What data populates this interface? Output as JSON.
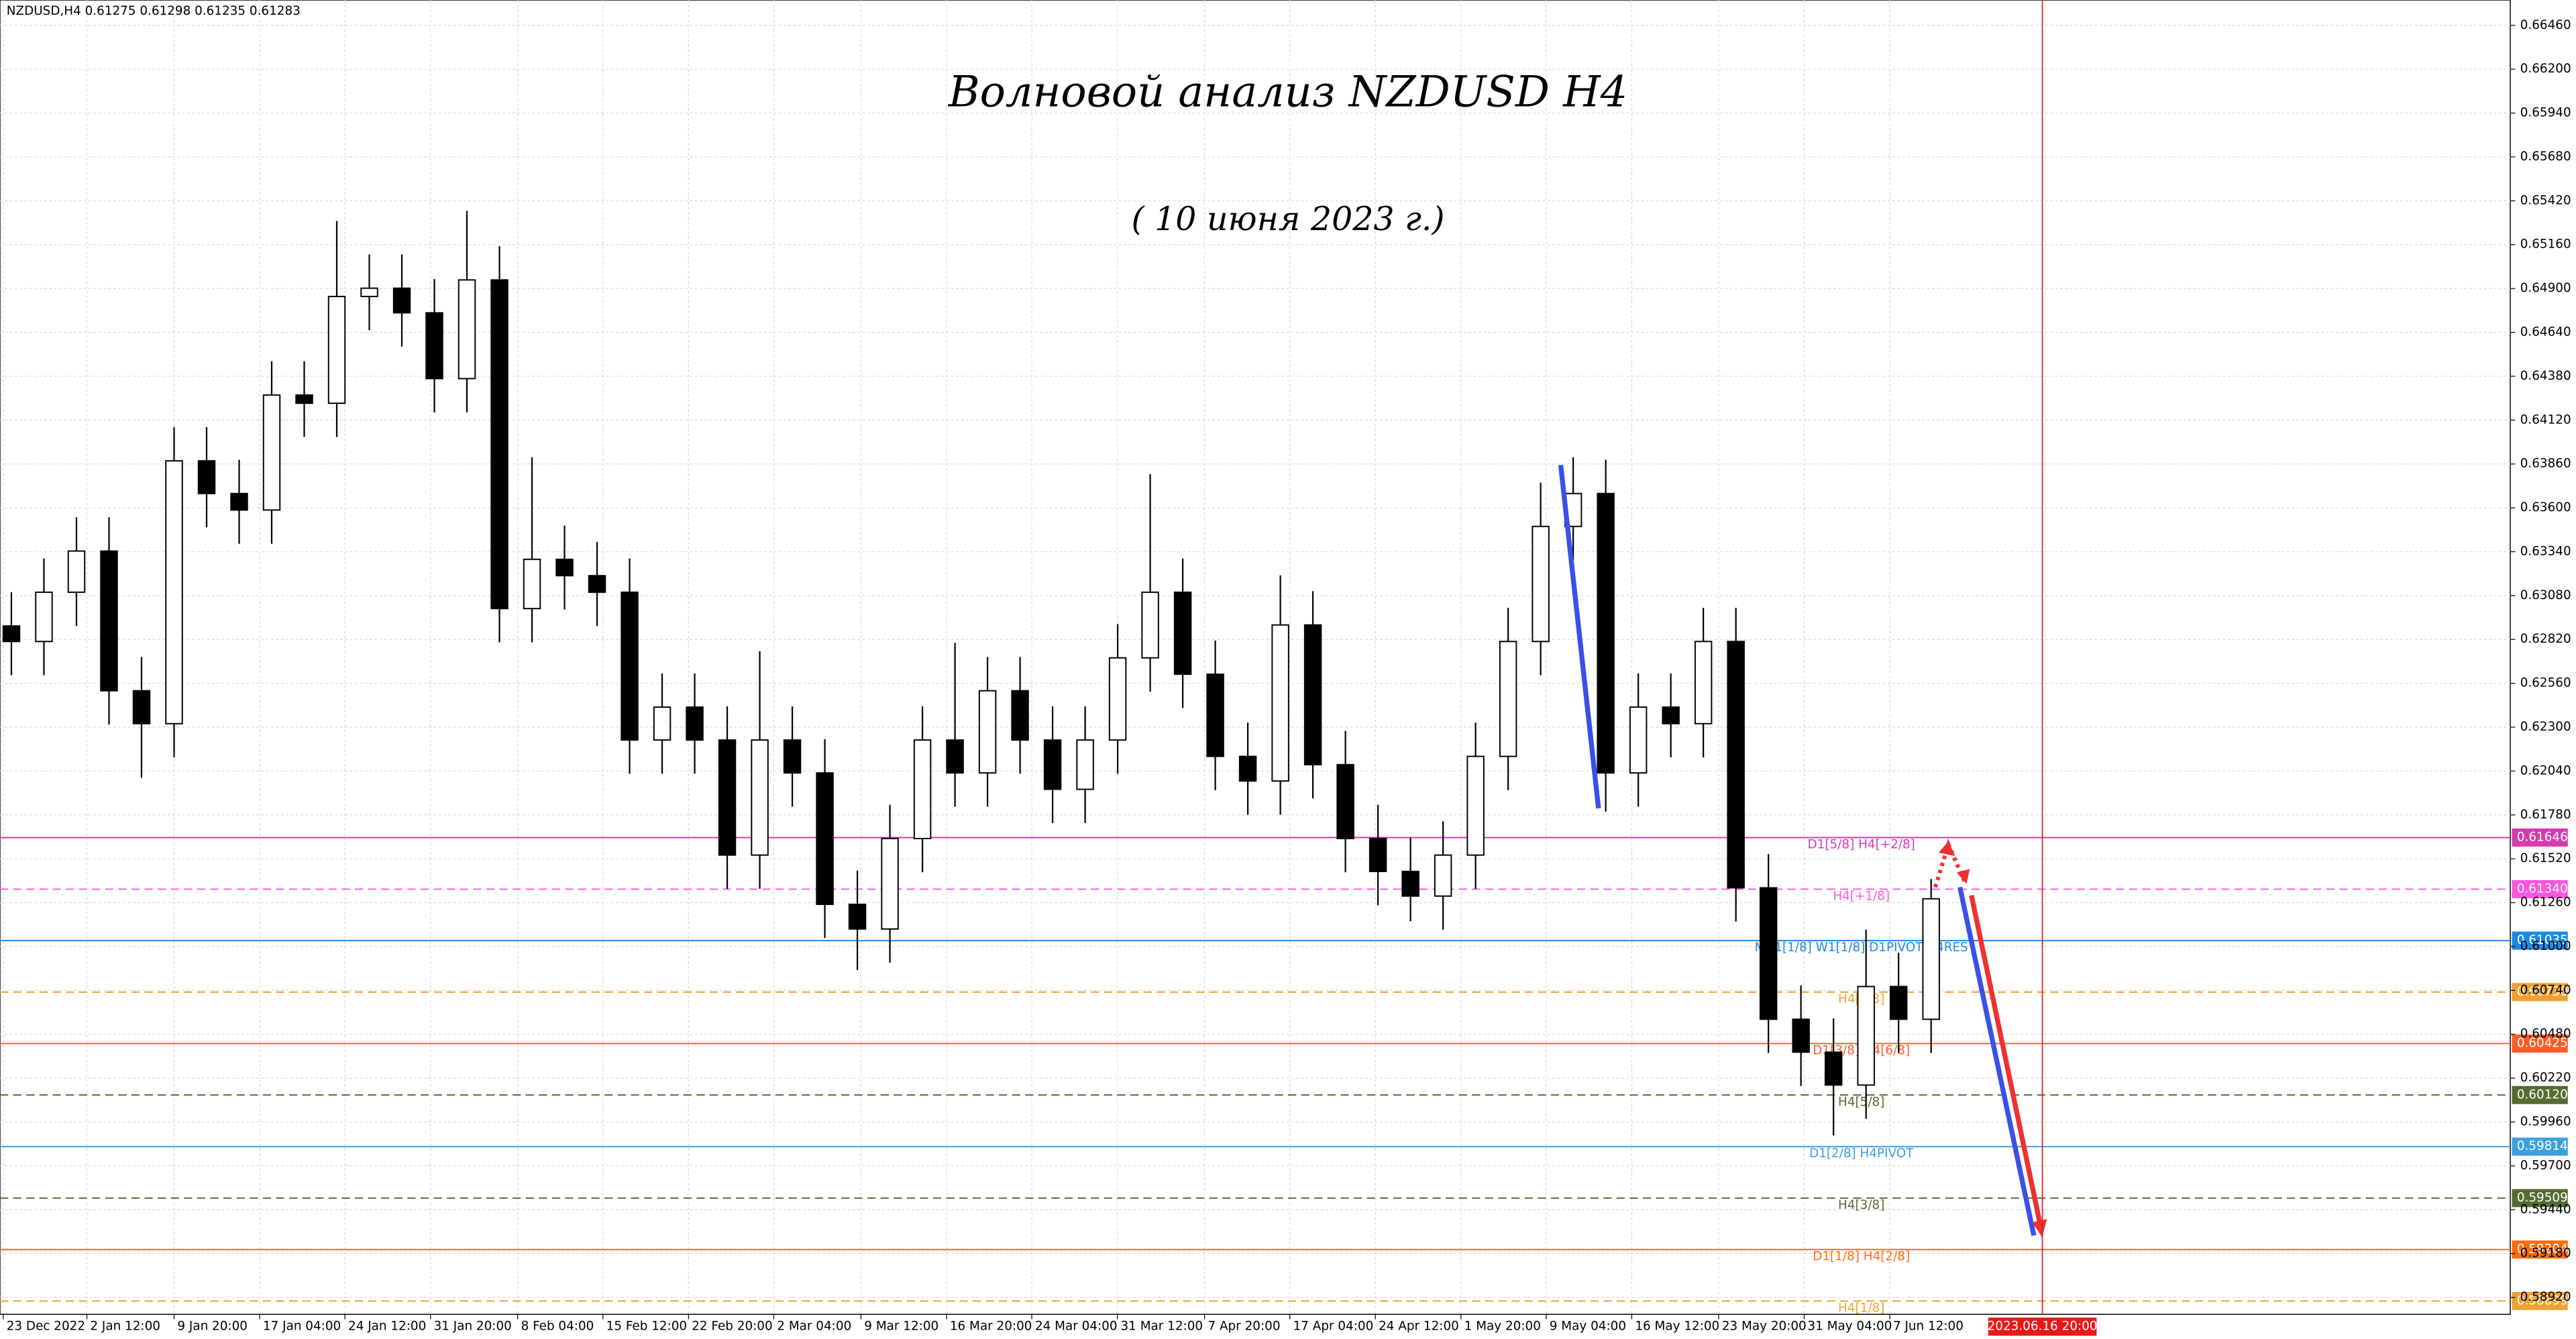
{
  "header": "NZDUSD,H4  0.61275 0.61298 0.61235 0.61283",
  "chart_data": {
    "type": "candlestick",
    "title": "Волновой анализ NZDUSD H4",
    "subtitle": "( 10 июня 2023 г.)",
    "open": [
      0.629,
      0.62808,
      0.631,
      0.63344,
      0.62516,
      0.62321,
      0.63879,
      0.63685,
      0.63587,
      0.64269,
      0.6422,
      0.64853,
      0.64902,
      0.64756,
      0.64366,
      0.64951,
      0.63003,
      0.63295,
      0.63198,
      0.631,
      0.62224,
      0.62419,
      0.62224,
      0.61542,
      0.62224,
      0.62029,
      0.6125,
      0.61104,
      0.6164,
      0.62224,
      0.62029,
      0.62516,
      0.62224,
      0.61932,
      0.62224,
      0.62711,
      0.631,
      0.62614,
      0.62127,
      0.61981,
      0.62906,
      0.62078,
      0.6164,
      0.61445,
      0.61299,
      0.61542,
      0.62127,
      0.62808,
      0.6349,
      0.63685,
      0.62029,
      0.62419,
      0.62321,
      0.62808,
      0.61348,
      0.60569,
      0.60374,
      0.60179,
      0.60763,
      0.60569
    ],
    "high": [
      0.631,
      0.633,
      0.63544,
      0.63544,
      0.62716,
      0.64079,
      0.64079,
      0.63885,
      0.64469,
      0.64469,
      0.653,
      0.65102,
      0.65102,
      0.64956,
      0.6536,
      0.65151,
      0.639,
      0.63495,
      0.63398,
      0.633,
      0.62619,
      0.62619,
      0.62424,
      0.6275,
      0.62424,
      0.62229,
      0.6145,
      0.6184,
      0.62424,
      0.628,
      0.62716,
      0.62716,
      0.62424,
      0.62424,
      0.62911,
      0.638,
      0.633,
      0.62814,
      0.62327,
      0.632,
      0.63106,
      0.62278,
      0.6184,
      0.61645,
      0.61742,
      0.62327,
      0.63008,
      0.6375,
      0.639,
      0.63885,
      0.62619,
      0.62619,
      0.63008,
      0.63008,
      0.61548,
      0.60769,
      0.60574,
      0.611,
      0.60963,
      0.614
    ],
    "low": [
      0.62608,
      0.62608,
      0.629,
      0.62316,
      0.62,
      0.62121,
      0.63485,
      0.63387,
      0.63387,
      0.6402,
      0.6402,
      0.64653,
      0.64556,
      0.64166,
      0.64166,
      0.62803,
      0.62803,
      0.62998,
      0.629,
      0.62024,
      0.62024,
      0.62024,
      0.61342,
      0.61342,
      0.61829,
      0.6105,
      0.6086,
      0.60904,
      0.6144,
      0.61829,
      0.61829,
      0.62024,
      0.61732,
      0.61732,
      0.62024,
      0.62511,
      0.62414,
      0.61927,
      0.61781,
      0.61781,
      0.61878,
      0.6144,
      0.61245,
      0.6115,
      0.61099,
      0.61342,
      0.61927,
      0.62608,
      0.6329,
      0.618,
      0.61829,
      0.62121,
      0.62121,
      0.61148,
      0.60369,
      0.60174,
      0.5988,
      0.59979,
      0.60369,
      0.60369
    ],
    "close": [
      0.62808,
      0.631,
      0.63344,
      0.62516,
      0.62321,
      0.63879,
      0.63685,
      0.63587,
      0.64269,
      0.6422,
      0.64853,
      0.64902,
      0.64756,
      0.64366,
      0.64951,
      0.63003,
      0.63295,
      0.63198,
      0.631,
      0.62224,
      0.62419,
      0.62224,
      0.61542,
      0.62224,
      0.62029,
      0.6125,
      0.61104,
      0.6164,
      0.62224,
      0.62029,
      0.62516,
      0.62224,
      0.61932,
      0.62224,
      0.62711,
      0.631,
      0.62614,
      0.62127,
      0.61981,
      0.62906,
      0.62078,
      0.6164,
      0.61445,
      0.61299,
      0.61542,
      0.62127,
      0.62808,
      0.6349,
      0.63685,
      0.62029,
      0.62419,
      0.62321,
      0.62808,
      0.61348,
      0.60569,
      0.60374,
      0.60179,
      0.60763,
      0.60569,
      0.61283
    ],
    "xlim": [
      -0.35,
      76.8
    ],
    "xticks": [
      {
        "value": -0.25,
        "label": "23 Dec 2022"
      },
      {
        "value": 2.32,
        "label": "2 Jan 12:00"
      },
      {
        "value": 5,
        "label": "9 Jan 20:00"
      },
      {
        "value": 7.63,
        "label": "17 Jan 04:00"
      },
      {
        "value": 10.25,
        "label": "24 Jan 12:00"
      },
      {
        "value": 12.88,
        "label": "31 Jan 20:00"
      },
      {
        "value": 15.56,
        "label": "8 Feb 04:00"
      },
      {
        "value": 18.18,
        "label": "15 Feb 12:00"
      },
      {
        "value": 20.81,
        "label": "22 Feb 20:00"
      },
      {
        "value": 23.43,
        "label": "2 Mar 04:00"
      },
      {
        "value": 26.11,
        "label": "9 Mar 12:00"
      },
      {
        "value": 28.74,
        "label": "16 Mar 20:00"
      },
      {
        "value": 31.36,
        "label": "24 Mar 04:00"
      },
      {
        "value": 33.99,
        "label": "31 Mar 12:00"
      },
      {
        "value": 36.67,
        "label": "7 Apr 20:00"
      },
      {
        "value": 39.29,
        "label": "17 Apr 04:00"
      },
      {
        "value": 41.92,
        "label": "24 Apr 12:00"
      },
      {
        "value": 44.55,
        "label": "1 May 20:00"
      },
      {
        "value": 47.17,
        "label": "9 May 04:00"
      },
      {
        "value": 49.8,
        "label": "16 May 12:00"
      },
      {
        "value": 52.47,
        "label": "23 May 20:00"
      },
      {
        "value": 55.1,
        "label": "31 May 04:00"
      },
      {
        "value": 57.73,
        "label": "7 Jun 12:00"
      }
    ],
    "marker": {
      "value": 62.42,
      "label": "2023.06.16 20:00",
      "color": "#e8191a"
    },
    "ylim": [
      0.5882,
      0.6661
    ],
    "yticks": [
      {
        "value": 0.6646,
        "label": "0.66460"
      },
      {
        "value": 0.662,
        "label": "0.66200"
      },
      {
        "value": 0.6594,
        "label": "0.65940"
      },
      {
        "value": 0.6568,
        "label": "0.65680"
      },
      {
        "value": 0.6542,
        "label": "0.65420"
      },
      {
        "value": 0.6516,
        "label": "0.65160"
      },
      {
        "value": 0.649,
        "label": "0.64900"
      },
      {
        "value": 0.6464,
        "label": "0.64640"
      },
      {
        "value": 0.6438,
        "label": "0.64380"
      },
      {
        "value": 0.6412,
        "label": "0.64120"
      },
      {
        "value": 0.6386,
        "label": "0.63860"
      },
      {
        "value": 0.636,
        "label": "0.63600"
      },
      {
        "value": 0.6334,
        "label": "0.63340"
      },
      {
        "value": 0.6308,
        "label": "0.63080"
      },
      {
        "value": 0.6282,
        "label": "0.62820"
      },
      {
        "value": 0.6256,
        "label": "0.62560"
      },
      {
        "value": 0.623,
        "label": "0.62300"
      },
      {
        "value": 0.6204,
        "label": "0.62040"
      },
      {
        "value": 0.6178,
        "label": "0.61780"
      },
      {
        "value": 0.6152,
        "label": "0.61520"
      },
      {
        "value": 0.6126,
        "label": "0.61260"
      },
      {
        "value": 0.61,
        "label": "0.61000"
      },
      {
        "value": 0.6074,
        "label": "0.60740"
      },
      {
        "value": 0.6048,
        "label": "0.60480"
      },
      {
        "value": 0.6022,
        "label": "0.60220"
      },
      {
        "value": 0.5996,
        "label": "0.59960"
      },
      {
        "value": 0.597,
        "label": "0.59700"
      },
      {
        "value": 0.5944,
        "label": "0.59440"
      },
      {
        "value": 0.5918,
        "label": "0.59180"
      },
      {
        "value": 0.5892,
        "label": "0.58920"
      }
    ],
    "grid": true,
    "levels": [
      {
        "name": "D1[5/8] H4[+2/8]",
        "value": 0.61646,
        "label": "0.61646",
        "color": "#d63ab0",
        "dashed": false
      },
      {
        "name": "H4[+1/8]",
        "value": 0.6134,
        "label": "0.61340",
        "color": "#ff55dd",
        "dashed": true
      },
      {
        "name": "MN1[1/8] W1[1/8] D1PIVOT H4RES",
        "value": 0.61035,
        "label": "0.61035",
        "color": "#1e88e5",
        "dashed": false
      },
      {
        "name": "H4[7/8]",
        "value": 0.6073,
        "label": "0.60730",
        "color": "#f0a030",
        "dashed": true
      },
      {
        "name": "D1[3/8] H4[6/8]",
        "value": 0.60425,
        "label": "0.60425",
        "color": "#ff5a28",
        "dashed": false
      },
      {
        "name": "H4[5/8]",
        "value": 0.6012,
        "label": "0.60120",
        "color": "#556b2f",
        "dashed": true
      },
      {
        "name": "D1[2/8] H4PIVOT",
        "value": 0.59814,
        "label": "0.59814",
        "color": "#3aa0e0",
        "dashed": false
      },
      {
        "name": "H4[3/8]",
        "value": 0.59509,
        "label": "0.59509",
        "color": "#556b2f",
        "dashed": true
      },
      {
        "name": "D1[1/8] H4[2/8]",
        "value": 0.59204,
        "label": "0.59204",
        "color": "#ff6a10",
        "dashed": false
      },
      {
        "name": "H4[1/8]",
        "value": 0.58899,
        "label": "0.58899",
        "color": "#f0a030",
        "dashed": true
      }
    ]
  }
}
